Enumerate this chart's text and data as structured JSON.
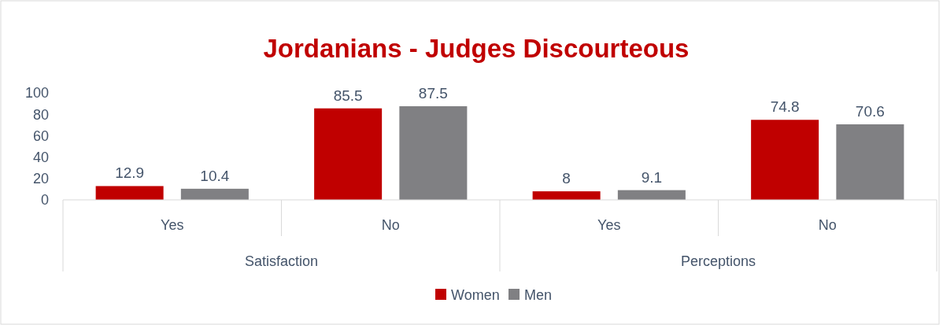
{
  "chart_data": {
    "type": "bar",
    "title": "Jordanians - Judges Discourteous",
    "categories": [
      "Yes",
      "No",
      "Yes",
      "No"
    ],
    "annotations": [
      "Satisfaction",
      "Perceptions"
    ],
    "series": [
      {
        "name": "Women",
        "color": "#c00000",
        "values": [
          12.9,
          85.5,
          8,
          74.8
        ]
      },
      {
        "name": "Men",
        "color": "#808083",
        "values": [
          10.4,
          87.5,
          9.1,
          70.6
        ]
      }
    ],
    "ylim": [
      0,
      100
    ],
    "yticks": [
      0,
      20,
      40,
      60,
      80,
      100
    ],
    "grid": false,
    "legend": "bottom",
    "data_labels": true
  }
}
